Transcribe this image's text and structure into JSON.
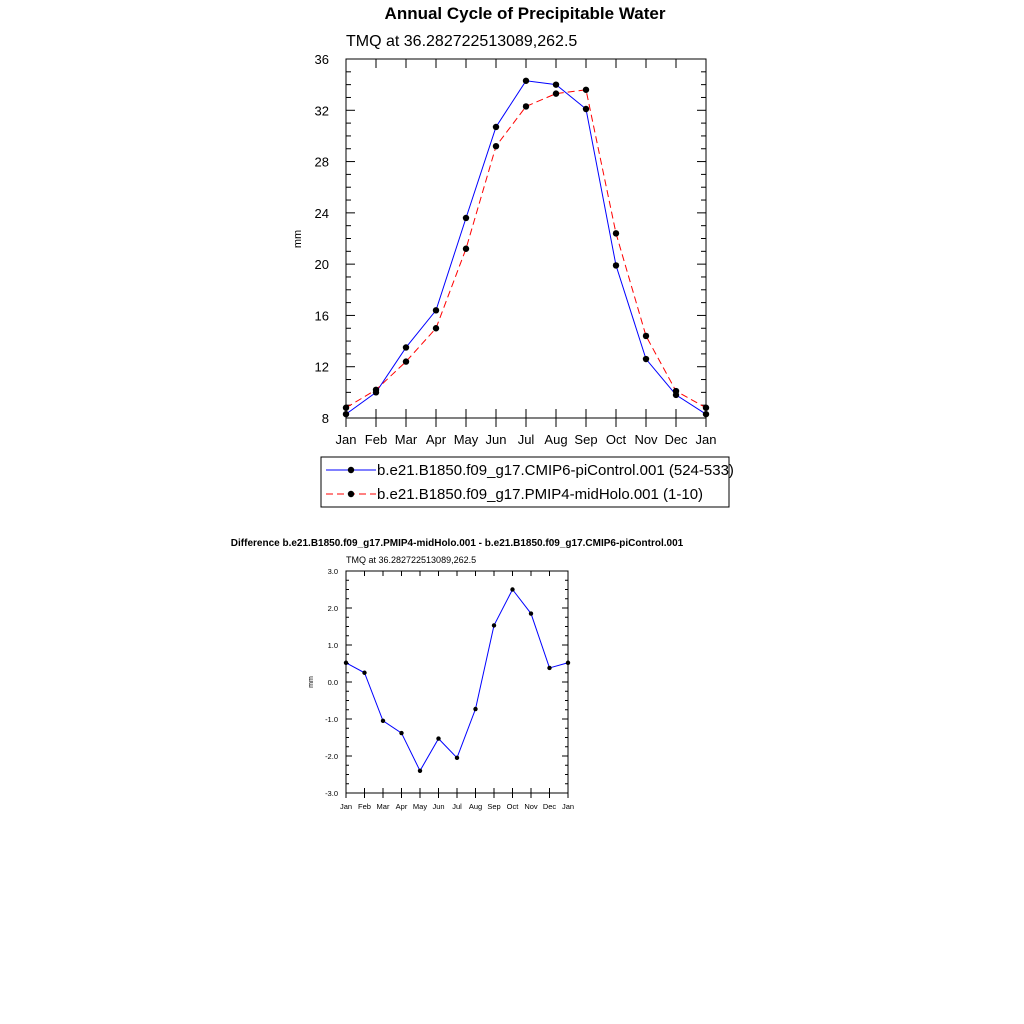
{
  "chart_data": [
    {
      "type": "line",
      "title": "Annual Cycle of Precipitable Water",
      "subtitle": "TMQ at 36.282722513089,262.5",
      "ylabel": "mm",
      "xlabel": "",
      "ylim": [
        8,
        36
      ],
      "yticks": [
        "8",
        "12",
        "16",
        "20",
        "24",
        "28",
        "32",
        "36"
      ],
      "categories": [
        "Jan",
        "Feb",
        "Mar",
        "Apr",
        "May",
        "Jun",
        "Jul",
        "Aug",
        "Sep",
        "Oct",
        "Nov",
        "Dec",
        "Jan"
      ],
      "grid": false,
      "legend_position": "bottom",
      "series": [
        {
          "name": "b.e21.B1850.f09_g17.CMIP6-piControl.001 (524-533)",
          "color": "#0000ff",
          "dash": "solid",
          "values": [
            8.3,
            10.0,
            13.5,
            16.4,
            23.6,
            30.7,
            34.3,
            34.0,
            32.1,
            19.9,
            12.6,
            9.8,
            8.3
          ]
        },
        {
          "name": "b.e21.B1850.f09_g17.PMIP4-midHolo.001 (1-10)",
          "color": "#ff0000",
          "dash": "dashed",
          "values": [
            8.8,
            10.2,
            12.4,
            15.0,
            21.2,
            29.2,
            32.3,
            33.3,
            33.6,
            22.4,
            14.4,
            10.1,
            8.8
          ]
        }
      ]
    },
    {
      "type": "line",
      "title": "Difference b.e21.B1850.f09_g17.PMIP4-midHolo.001 - b.e21.B1850.f09_g17.CMIP6-piControl.001",
      "subtitle": "TMQ at 36.282722513089,262.5",
      "ylabel": "mm",
      "xlabel": "",
      "ylim": [
        -3.0,
        3.0
      ],
      "yticks": [
        "-3.0",
        "-2.0",
        "-1.0",
        "0.0",
        "1.0",
        "2.0",
        "3.0"
      ],
      "categories": [
        "Jan",
        "Feb",
        "Mar",
        "Apr",
        "May",
        "Jun",
        "Jul",
        "Aug",
        "Sep",
        "Oct",
        "Nov",
        "Dec",
        "Jan"
      ],
      "grid": false,
      "series": [
        {
          "color": "#0000ff",
          "dash": "solid",
          "values": [
            0.52,
            0.25,
            -1.05,
            -1.38,
            -2.4,
            -1.53,
            -2.05,
            -0.73,
            1.53,
            2.5,
            1.85,
            0.38,
            0.52
          ]
        }
      ]
    }
  ]
}
